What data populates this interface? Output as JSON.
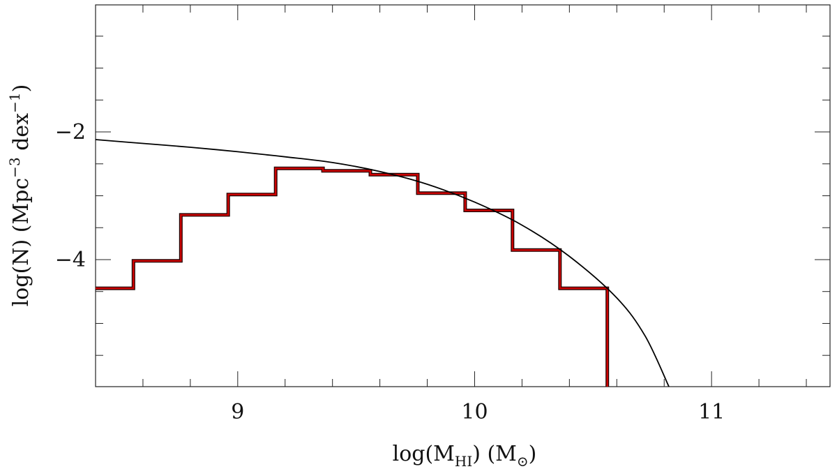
{
  "chart_data": {
    "type": "line",
    "title": "",
    "xlabel": {
      "prefix": "log(M",
      "sub": "HI",
      "suffix": ") (M",
      "sub2": "⊙",
      "end": ")"
    },
    "ylabel": {
      "prefix": "log(N) (Mpc",
      "sup1": "−3",
      "mid": " dex",
      "sup2": "−1",
      "end": ")"
    },
    "xlim": [
      8.4,
      11.5
    ],
    "ylim": [
      -5.99,
      -0.01
    ],
    "x_ticks": [
      {
        "value": 9,
        "label": "9"
      },
      {
        "value": 10,
        "label": "10"
      },
      {
        "value": 11,
        "label": "11"
      }
    ],
    "y_ticks": [
      {
        "value": -2,
        "label": "−2"
      },
      {
        "value": -4,
        "label": "−4"
      }
    ],
    "x_minor_step": 0.2,
    "y_minor_step": 0.5,
    "grid": false,
    "series": [
      {
        "kind": "step",
        "color": "#cc0000",
        "edges": [
          8.4,
          8.56,
          8.76,
          8.96,
          9.16,
          9.36,
          9.56,
          9.76,
          9.96,
          10.16,
          10.36,
          10.56
        ],
        "values": [
          -4.45,
          -4.02,
          -3.3,
          -2.98,
          -2.57,
          -2.61,
          -2.67,
          -2.96,
          -3.23,
          -3.85,
          -4.45
        ],
        "drop_to": -5.99
      },
      {
        "kind": "curve",
        "color": "#000000",
        "points": [
          [
            8.4,
            -2.12
          ],
          [
            8.6,
            -2.18
          ],
          [
            8.8,
            -2.24
          ],
          [
            9.0,
            -2.31
          ],
          [
            9.2,
            -2.39
          ],
          [
            9.4,
            -2.48
          ],
          [
            9.6,
            -2.62
          ],
          [
            9.8,
            -2.82
          ],
          [
            10.0,
            -3.1
          ],
          [
            10.2,
            -3.46
          ],
          [
            10.4,
            -3.95
          ],
          [
            10.6,
            -4.6
          ],
          [
            10.72,
            -5.2
          ],
          [
            10.82,
            -5.99
          ]
        ]
      }
    ]
  }
}
